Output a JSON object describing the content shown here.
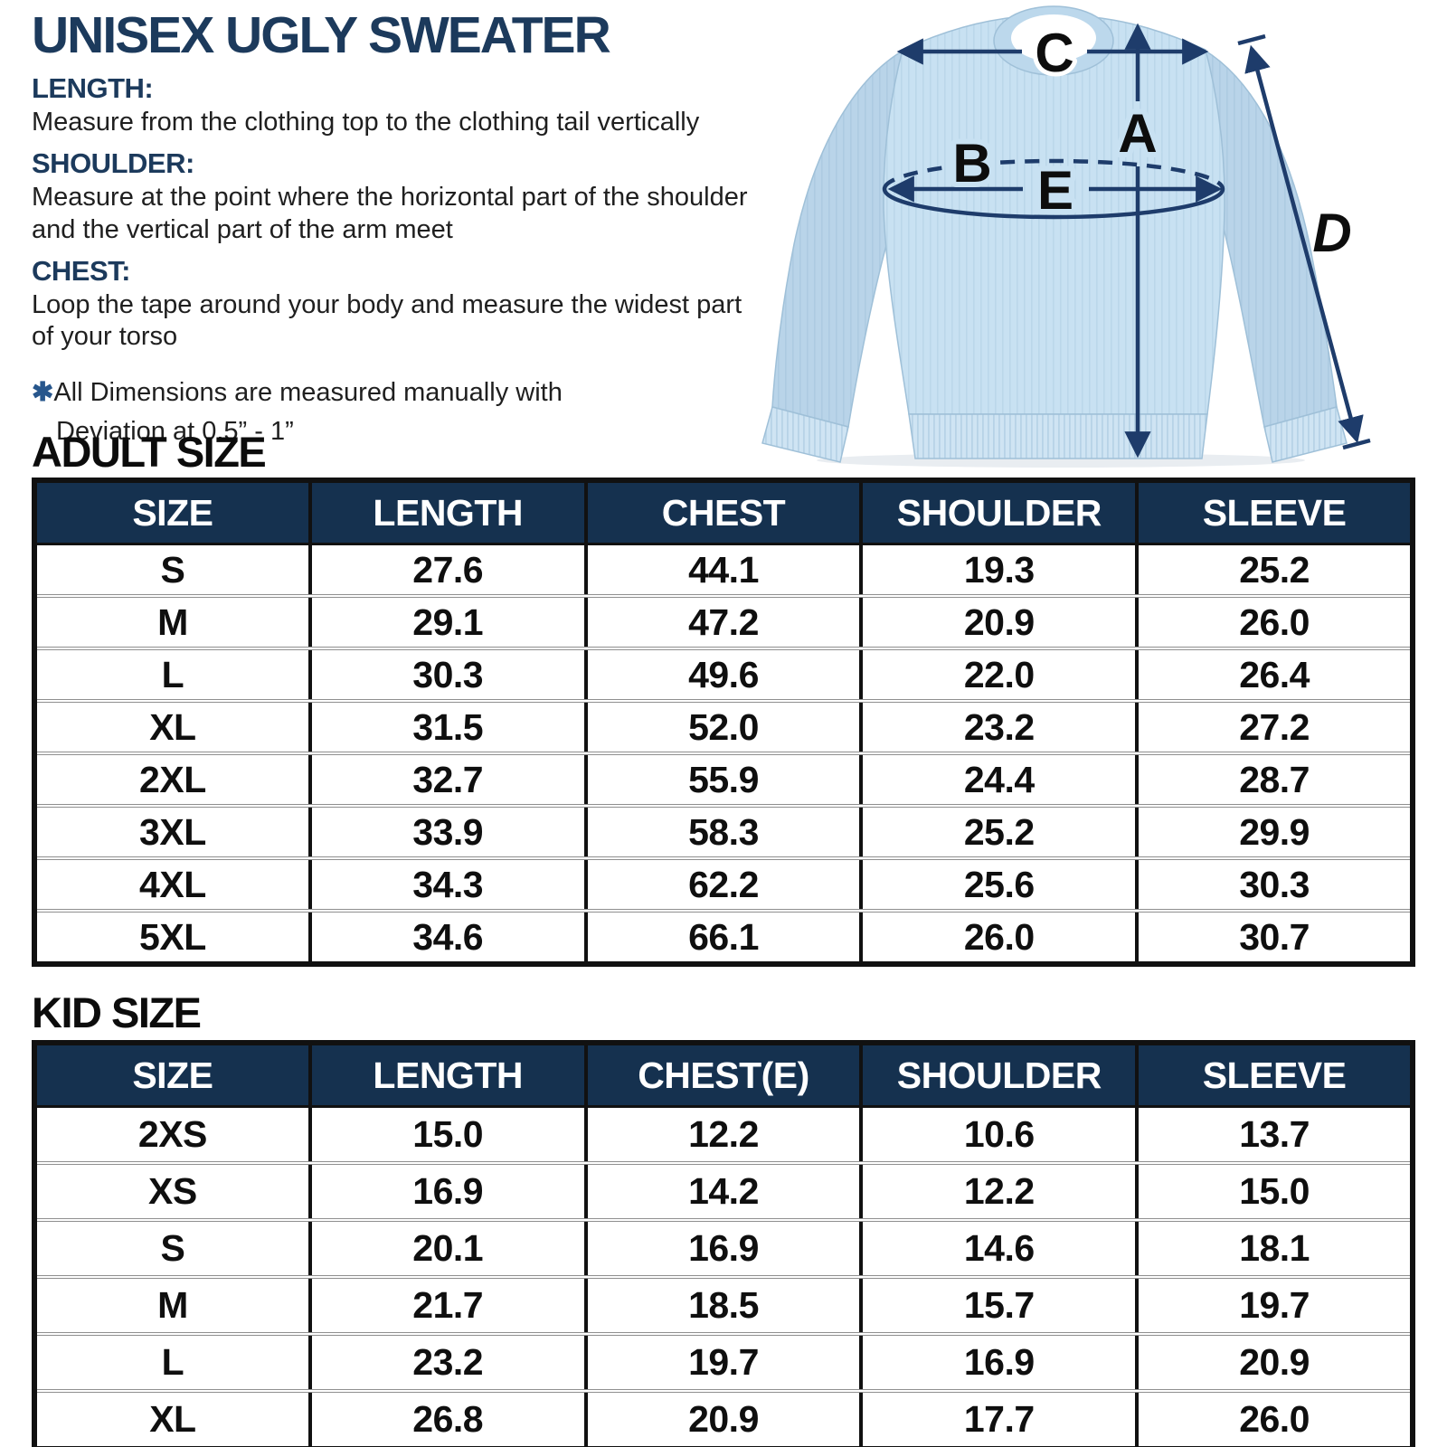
{
  "title": "UNISEX UGLY SWEATER",
  "instructions": [
    {
      "heading": "LENGTH:",
      "text": "Measure from the clothing top to the clothing tail vertically"
    },
    {
      "heading": "SHOULDER:",
      "text": "Measure at the point where the horizontal part of the shoulder and the vertical part of the arm meet"
    },
    {
      "heading": "CHEST:",
      "text": "Loop the tape around your body and measure the widest part of your torso"
    }
  ],
  "note": {
    "symbol": "✱",
    "line1": "All Dimensions are measured manually with",
    "line2": "Deviation at 0.5” - 1”"
  },
  "figure": {
    "labels": {
      "a": "A",
      "b": "B",
      "c": "C",
      "d": "D",
      "e": "E"
    }
  },
  "adult_table": {
    "heading": "ADULT SIZE",
    "headers": [
      "SIZE",
      "LENGTH",
      "CHEST",
      "SHOULDER",
      "SLEEVE"
    ],
    "rows": [
      [
        "S",
        "27.6",
        "44.1",
        "19.3",
        "25.2"
      ],
      [
        "M",
        "29.1",
        "47.2",
        "20.9",
        "26.0"
      ],
      [
        "L",
        "30.3",
        "49.6",
        "22.0",
        "26.4"
      ],
      [
        "XL",
        "31.5",
        "52.0",
        "23.2",
        "27.2"
      ],
      [
        "2XL",
        "32.7",
        "55.9",
        "24.4",
        "28.7"
      ],
      [
        "3XL",
        "33.9",
        "58.3",
        "25.2",
        "29.9"
      ],
      [
        "4XL",
        "34.3",
        "62.2",
        "25.6",
        "30.3"
      ],
      [
        "5XL",
        "34.6",
        "66.1",
        "26.0",
        "30.7"
      ]
    ]
  },
  "kid_table": {
    "heading": "KID SIZE",
    "headers": [
      "SIZE",
      "LENGTH",
      "CHEST(E)",
      "SHOULDER",
      "SLEEVE"
    ],
    "rows": [
      [
        "2XS",
        "15.0",
        "12.2",
        "10.6",
        "13.7"
      ],
      [
        "XS",
        "16.9",
        "14.2",
        "12.2",
        "15.0"
      ],
      [
        "S",
        "20.1",
        "16.9",
        "14.6",
        "18.1"
      ],
      [
        "M",
        "21.7",
        "18.5",
        "15.7",
        "19.7"
      ],
      [
        "L",
        "23.2",
        "19.7",
        "16.9",
        "20.9"
      ],
      [
        "XL",
        "26.8",
        "20.9",
        "17.7",
        "26.0"
      ]
    ]
  },
  "colors": {
    "heading_navy": "#1c3a5c",
    "table_header_bg": "#15314f",
    "arrow_navy": "#1e3c6b",
    "sweater_body": "#c8e1f2",
    "sweater_sleeve": "#b9d4e9"
  }
}
